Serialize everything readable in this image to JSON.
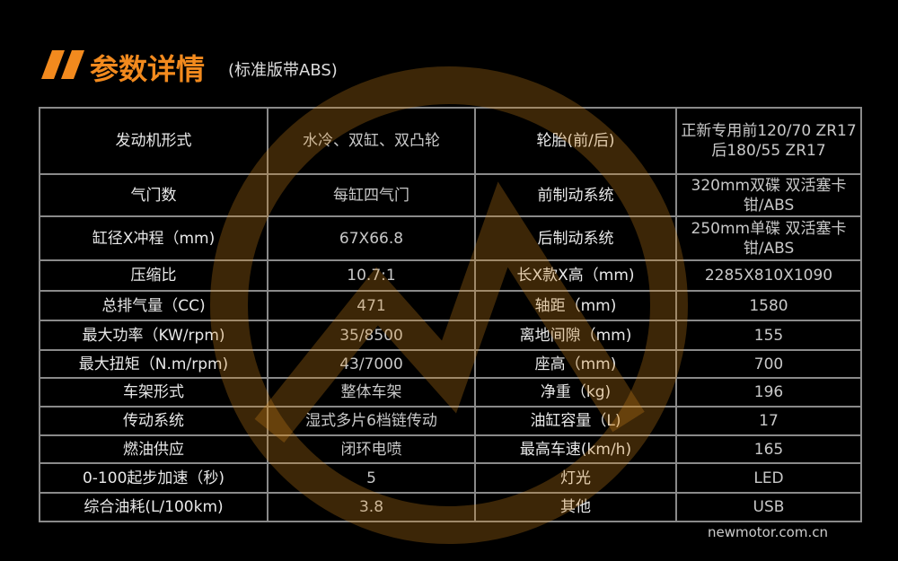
{
  "header": {
    "title": "参数详情",
    "subtitle": "(标准版带ABS)"
  },
  "table": {
    "rows": [
      [
        "发动机形式",
        "水冷、双缸、双凸轮",
        "轮胎(前/后)",
        "正新专用前120/70 ZR17\n后180/55 ZR17"
      ],
      [
        "气门数",
        "每缸四气门",
        "前制动系统",
        "320mm双碟 双活塞卡\n钳/ABS"
      ],
      [
        "缸径X冲程（mm)",
        "67X66.8",
        "后制动系统",
        "250mm单碟 双活塞卡\n钳/ABS"
      ],
      [
        "压缩比",
        "10.7:1",
        "长X款X高（mm)",
        "2285X810X1090"
      ],
      [
        "总排气量（CC)",
        "471",
        "轴距（mm)",
        "1580"
      ],
      [
        "最大功率（KW/rpm)",
        "35/8500",
        "离地间隙（mm)",
        "155"
      ],
      [
        "最大扭矩（N.m/rpm)",
        "43/7000",
        "座高（mm)",
        "700"
      ],
      [
        "车架形式",
        "整体车架",
        "净重（kg)",
        "196"
      ],
      [
        "传动系统",
        "湿式多片6档链传动",
        "油缸容量（L)",
        "17"
      ],
      [
        "燃油供应",
        "闭环电喷",
        "最高车速(km/h)",
        "165"
      ],
      [
        "0-100起步加速（秒)",
        "5",
        "灯光",
        "LED"
      ],
      [
        "综合油耗(L/100km)",
        "3.8",
        "其他",
        "USB"
      ]
    ]
  },
  "footer": {
    "watermark": "newmotor.com.cn"
  }
}
